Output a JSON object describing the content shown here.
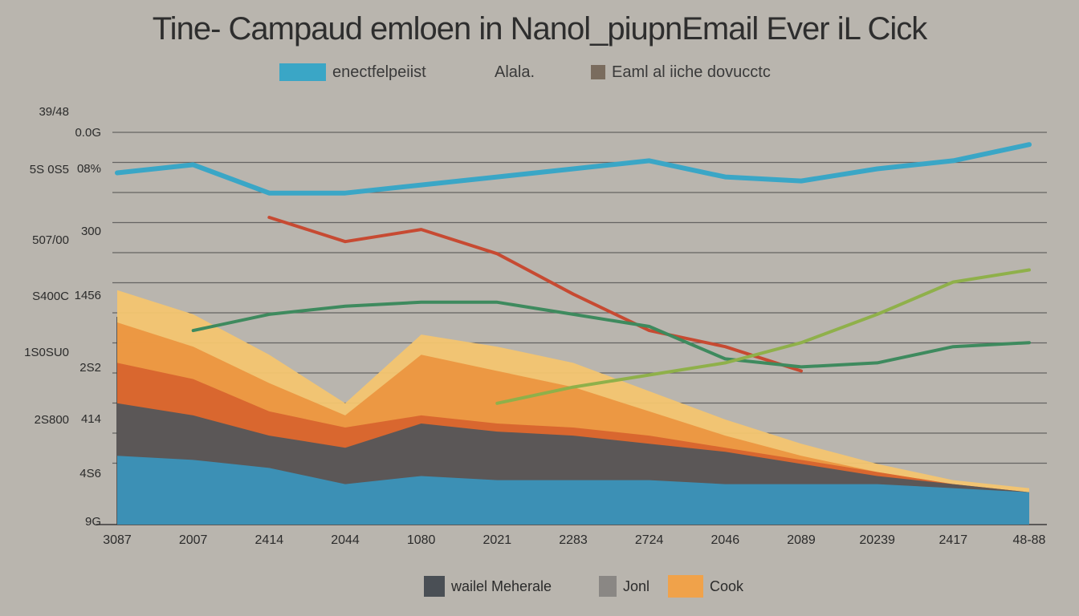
{
  "title": "Tine- Campaud emloen  in Nanol_piupnEmail Ever  iL Cick",
  "legend_top": [
    {
      "label": "enectfelpeiist",
      "color": "#3aa6c6"
    },
    {
      "label": "Alala.",
      "color": ""
    },
    {
      "label": "Eaml al iiche dovucctc",
      "color": "#7a6c5e"
    }
  ],
  "legend_bottom": [
    {
      "label": "wailel Meherale",
      "color": "#4a4f55"
    },
    {
      "label": "Jonl",
      "color": "#8a8784"
    },
    {
      "label": "Cook",
      "color": "#f0a24a"
    }
  ],
  "colors": {
    "background": "#b9b5ae",
    "blue": "#3aa6c6",
    "red": "#c74a32",
    "green": "#3e8a5e",
    "lightgreen": "#8fb04a",
    "gray": "#6f6a66",
    "area_blue": "#3b93bb",
    "area_dark": "#54565a",
    "area_red": "#d8642e",
    "area_orange": "#eb9640",
    "area_yellow": "#f3c570"
  },
  "chart_data": {
    "type": "area",
    "title": "Tine- Campaud emloen  in Nanol_piupnEmail Ever  iL Cick",
    "x": [
      "3087",
      "2007",
      "2414",
      "2044",
      "1080",
      "2021",
      "2283",
      "2724",
      "2046",
      "2089",
      "20239",
      "2417",
      "48-88"
    ],
    "y_ticks_outer": [
      "39/48",
      "5S 0S5",
      "507/00",
      "S400C",
      "1S0SU0",
      "2S800"
    ],
    "y_ticks_inner": [
      "0.0G",
      "08%",
      "300",
      "1456",
      "2S2",
      "414",
      "4S6",
      "9G"
    ],
    "ylim": [
      0,
      100
    ],
    "grid": true,
    "series": [
      {
        "name": "enectfelpeiist",
        "kind": "line",
        "color": "#3aa6c6",
        "values": [
          87,
          89,
          82,
          82,
          84,
          86,
          88,
          90,
          86,
          85,
          88,
          90,
          94
        ]
      },
      {
        "name": "Eaml al iiche dovucctc",
        "kind": "line",
        "color": "#c74a32",
        "values": [
          null,
          null,
          76,
          70,
          73,
          67,
          57,
          48,
          44,
          38,
          null,
          null,
          null
        ]
      },
      {
        "kind": "line",
        "color": "#3e8a5e",
        "values": [
          null,
          48,
          52,
          54,
          55,
          55,
          52,
          49,
          41,
          39,
          40,
          44,
          45
        ]
      },
      {
        "kind": "line",
        "color": "#8fb04a",
        "values": [
          null,
          null,
          null,
          null,
          null,
          30,
          34,
          37,
          40,
          45,
          52,
          60,
          63
        ]
      },
      {
        "name": "wailel Meherale",
        "kind": "area",
        "color": "#54565a",
        "values": [
          30,
          27,
          22,
          19,
          25,
          23,
          22,
          20,
          18,
          15,
          12,
          10,
          8
        ]
      },
      {
        "kind": "area",
        "color": "#d8642e",
        "values": [
          40,
          36,
          28,
          24,
          27,
          25,
          24,
          22,
          19,
          16,
          13,
          10,
          8
        ]
      },
      {
        "name": "Cook",
        "kind": "area",
        "color": "#eb9640",
        "values": [
          50,
          44,
          35,
          27,
          42,
          38,
          34,
          28,
          22,
          17,
          13,
          10,
          8
        ]
      },
      {
        "kind": "area",
        "color": "#f3c570",
        "values": [
          58,
          52,
          42,
          30,
          47,
          44,
          40,
          33,
          26,
          20,
          15,
          11,
          9
        ]
      },
      {
        "kind": "area",
        "color": "#3b93bb",
        "values": [
          17,
          16,
          14,
          10,
          12,
          11,
          11,
          11,
          10,
          10,
          10,
          9,
          8
        ]
      }
    ]
  }
}
